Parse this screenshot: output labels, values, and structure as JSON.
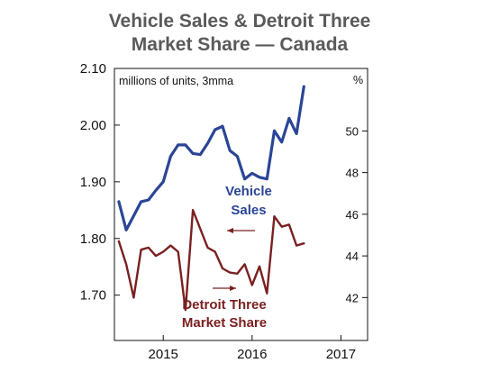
{
  "chart_data": {
    "type": "line",
    "title_line1": "Vehicle Sales & Detroit Three",
    "title_line2": "Market Share — Canada",
    "left_unit_label": "millions of units, 3mma",
    "right_unit_label": "%",
    "x_tick_labels": [
      "2015",
      "2016",
      "2017"
    ],
    "x_ticks": [
      2015,
      2016,
      2017
    ],
    "xlim": [
      2014.45,
      2017.3
    ],
    "ylim_left": [
      1.62,
      2.1
    ],
    "ylim_right": [
      39.94,
      53.0
    ],
    "y_left_ticks": [
      {
        "value": 2.1,
        "label": "2.10"
      },
      {
        "value": 2.0,
        "label": "2.00"
      },
      {
        "value": 1.9,
        "label": "1.90"
      },
      {
        "value": 1.8,
        "label": "1.80"
      },
      {
        "value": 1.7,
        "label": "1.70"
      }
    ],
    "y_right_ticks": [
      {
        "value": 50,
        "label": "50"
      },
      {
        "value": 48,
        "label": "48"
      },
      {
        "value": 46,
        "label": "46"
      },
      {
        "value": 44,
        "label": "44"
      },
      {
        "value": 42,
        "label": "42"
      }
    ],
    "grid": false,
    "series": [
      {
        "name": "Vehicle Sales",
        "axis": "left",
        "color": "#2b4596",
        "points": [
          [
            2014.5,
            1.865
          ],
          [
            2014.583,
            1.815
          ],
          [
            2014.667,
            1.84
          ],
          [
            2014.75,
            1.865
          ],
          [
            2014.833,
            1.868
          ],
          [
            2014.917,
            1.885
          ],
          [
            2015.0,
            1.9
          ],
          [
            2015.083,
            1.945
          ],
          [
            2015.167,
            1.965
          ],
          [
            2015.25,
            1.965
          ],
          [
            2015.333,
            1.95
          ],
          [
            2015.417,
            1.948
          ],
          [
            2015.5,
            1.968
          ],
          [
            2015.583,
            1.992
          ],
          [
            2015.667,
            1.998
          ],
          [
            2015.75,
            1.955
          ],
          [
            2015.833,
            1.945
          ],
          [
            2015.917,
            1.905
          ],
          [
            2016.0,
            1.915
          ],
          [
            2016.083,
            1.908
          ],
          [
            2016.167,
            1.905
          ],
          [
            2016.25,
            1.99
          ],
          [
            2016.333,
            1.97
          ],
          [
            2016.417,
            2.012
          ],
          [
            2016.5,
            1.985
          ],
          [
            2016.583,
            2.068
          ]
        ]
      },
      {
        "name": "Detroit Three Market Share",
        "axis": "right",
        "color": "#7a2020",
        "points": [
          [
            2014.5,
            44.7
          ],
          [
            2014.583,
            43.6
          ],
          [
            2014.667,
            42.0
          ],
          [
            2014.75,
            44.3
          ],
          [
            2014.833,
            44.4
          ],
          [
            2014.917,
            44.0
          ],
          [
            2015.0,
            44.2
          ],
          [
            2015.083,
            44.5
          ],
          [
            2015.167,
            44.2
          ],
          [
            2015.25,
            41.4
          ],
          [
            2015.333,
            46.2
          ],
          [
            2015.417,
            45.3
          ],
          [
            2015.5,
            44.4
          ],
          [
            2015.583,
            44.2
          ],
          [
            2015.667,
            43.4
          ],
          [
            2015.75,
            43.2
          ],
          [
            2015.833,
            43.15
          ],
          [
            2015.917,
            43.6
          ],
          [
            2016.0,
            42.6
          ],
          [
            2016.083,
            43.5
          ],
          [
            2016.167,
            42.2
          ],
          [
            2016.25,
            45.9
          ],
          [
            2016.333,
            45.4
          ],
          [
            2016.417,
            45.5
          ],
          [
            2016.5,
            44.5
          ],
          [
            2016.583,
            44.6
          ]
        ]
      }
    ],
    "annotations": {
      "vehicle_sales_line1": "Vehicle",
      "vehicle_sales_line2": "Sales",
      "market_share_line1": "Detroit Three",
      "market_share_line2": "Market Share"
    }
  }
}
